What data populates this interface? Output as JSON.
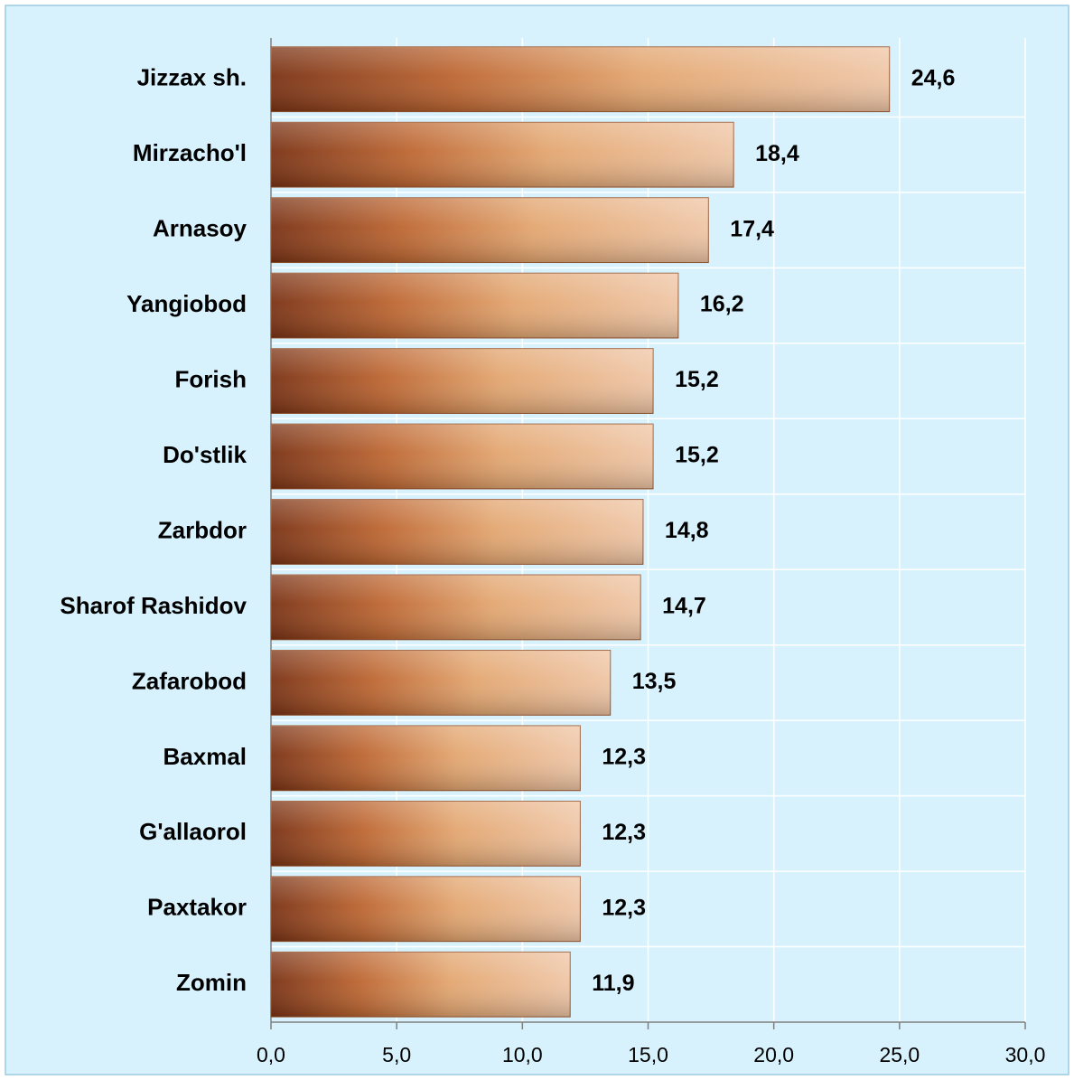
{
  "chart_data": {
    "type": "barh",
    "categories": [
      "Jizzax sh.",
      "Mirzacho'l",
      "Arnasoy",
      "Yangiobod",
      "Forish",
      "Do'stlik",
      "Zarbdor",
      "Sharof Rashidov",
      "Zafarobod",
      "Baxmal",
      "G'allaorol",
      "Paxtakor",
      "Zomin"
    ],
    "values": [
      24.6,
      18.4,
      17.4,
      16.2,
      15.2,
      15.2,
      14.8,
      14.7,
      13.5,
      12.3,
      12.3,
      12.3,
      11.9
    ],
    "value_labels": [
      "24,6",
      "18,4",
      "17,4",
      "16,2",
      "15,2",
      "15,2",
      "14,8",
      "14,7",
      "13,5",
      "12,3",
      "12,3",
      "12,3",
      "11,9"
    ],
    "color": "#c0703a",
    "xlim": [
      0,
      30
    ],
    "xticks": [
      {
        "value": 0,
        "label": "0,0"
      },
      {
        "value": 5,
        "label": "5,0"
      },
      {
        "value": 10,
        "label": "10,0"
      },
      {
        "value": 15,
        "label": "15,0"
      },
      {
        "value": 20,
        "label": "20,0"
      },
      {
        "value": 25,
        "label": "25,0"
      },
      {
        "value": 30,
        "label": "30,0"
      }
    ],
    "grid": true
  }
}
